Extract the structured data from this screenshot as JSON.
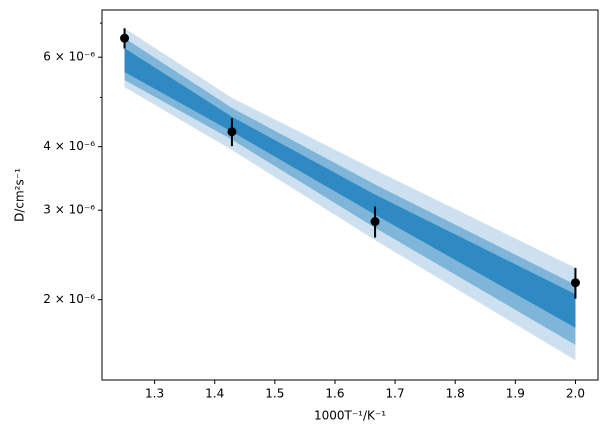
{
  "chart_data": {
    "type": "scatter",
    "x_label": "1000T⁻¹/K⁻¹",
    "y_label": "D/cm²s⁻¹",
    "x": [
      1.25,
      1.4286,
      1.6667,
      2.0
    ],
    "values": [
      6.54e-06,
      4.28e-06,
      2.85e-06,
      2.16e-06
    ],
    "errors": [
      3e-07,
      2.7e-07,
      2e-07,
      1.5e-07
    ],
    "color": "#000000",
    "band_x": [
      1.25,
      1.4286,
      1.6667,
      2.0
    ],
    "bands": [
      {
        "color": "#cde0ef",
        "upper": [
          6.84e-06,
          4.99e-06,
          3.6e-06,
          2.31e-06
        ],
        "lower": [
          5.24e-06,
          3.94e-06,
          2.62e-06,
          1.52e-06
        ]
      },
      {
        "color": "#7fb5d8",
        "upper": [
          6.54e-06,
          4.77e-06,
          3.37e-06,
          2.14e-06
        ],
        "lower": [
          5.41e-06,
          4.13e-06,
          2.77e-06,
          1.63e-06
        ]
      },
      {
        "color": "#2f8ac4",
        "upper": [
          6.25e-06,
          4.58e-06,
          3.22e-06,
          2.05e-06
        ],
        "lower": [
          5.61e-06,
          4.28e-06,
          2.94e-06,
          1.76e-06
        ]
      }
    ],
    "xlim": [
      1.2125,
      2.0375
    ],
    "xticks": [
      1.3,
      1.4,
      1.5,
      1.6,
      1.7,
      1.8,
      1.9,
      {
        "value": 2.0,
        "label": "2.0"
      }
    ],
    "yscale": "log",
    "ylim": [
      1.39e-06,
      7.43e-06
    ],
    "yticks": [
      {
        "value": 2e-06,
        "label": "2 × 10⁻⁶"
      },
      {
        "value": 3e-06,
        "label": "3 × 10⁻⁶"
      },
      {
        "value": 4e-06,
        "label": "4 × 10⁻⁶"
      },
      {
        "value": 6e-06,
        "label": "6 × 10⁻⁶"
      }
    ],
    "yminorticks": [
      5e-06,
      7e-06
    ]
  }
}
